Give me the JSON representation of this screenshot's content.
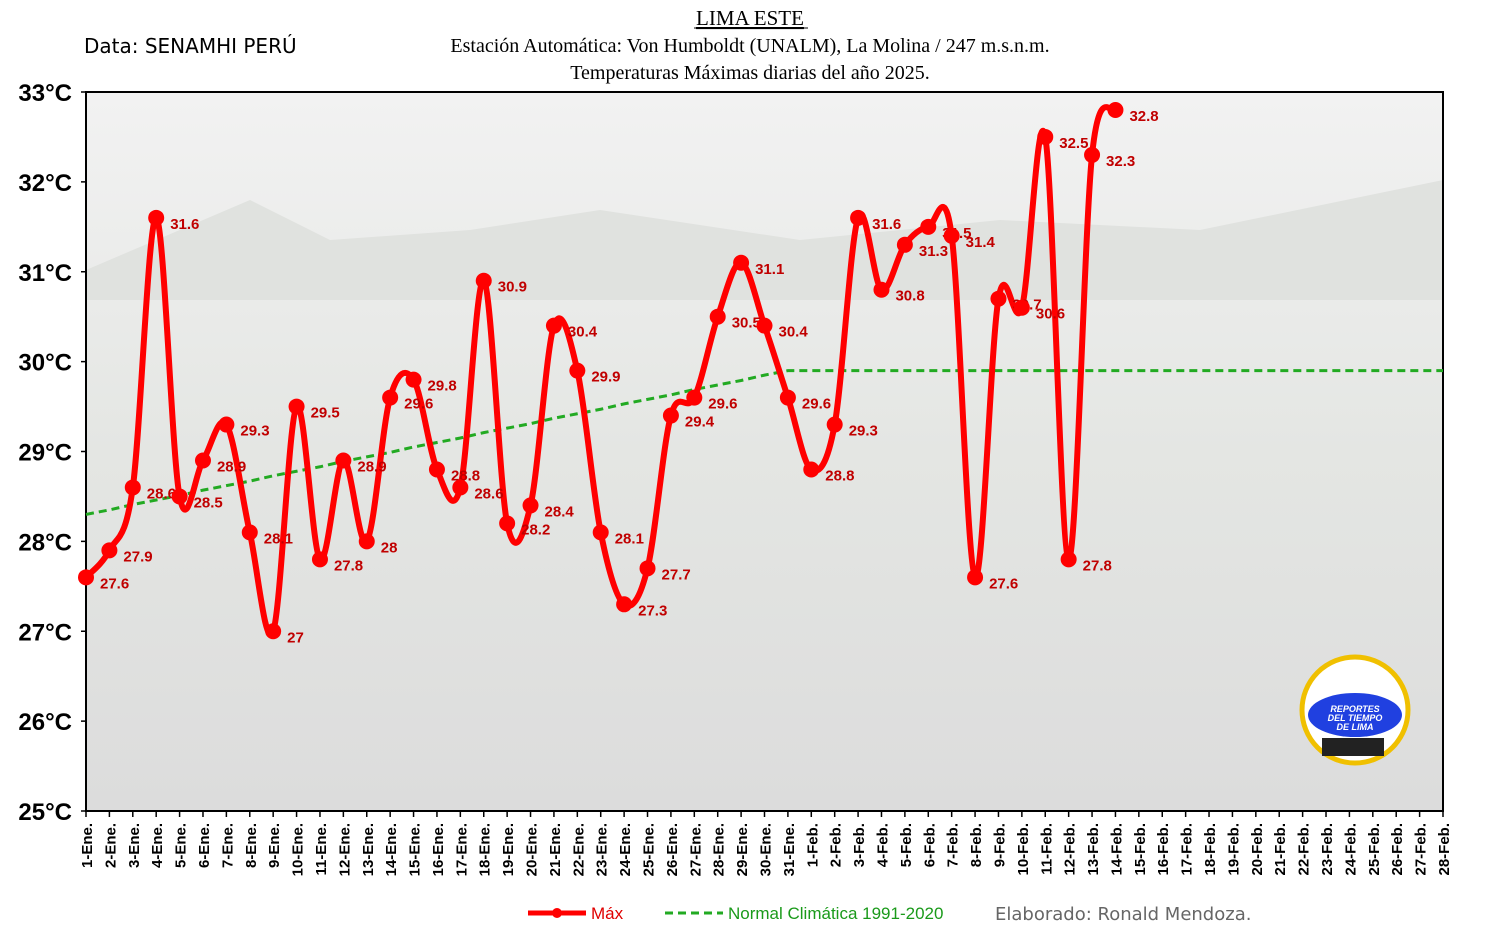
{
  "chart_data": {
    "type": "line",
    "title": "LIMA ESTE",
    "subtitle": [
      "Estación Automática: Von Humboldt (UNALM), La Molina / 247 m.s.n.m.",
      "Temperaturas Máximas diarias del año 2025."
    ],
    "source": "Data: SENAMHI PERÚ",
    "credit": "Elaborado: Ronald Mendoza.",
    "logo": [
      "REPORTES",
      "DEL TIEMPO",
      "DE LIMA"
    ],
    "categories": [
      "1-Ene.",
      "2-Ene.",
      "3-Ene.",
      "4-Ene.",
      "5-Ene.",
      "6-Ene.",
      "7-Ene.",
      "8-Ene.",
      "9-Ene.",
      "10-Ene.",
      "11-Ene.",
      "12-Ene.",
      "13-Ene.",
      "14-Ene.",
      "15-Ene.",
      "16-Ene.",
      "17-Ene.",
      "18-Ene.",
      "19-Ene.",
      "20-Ene.",
      "21-Ene.",
      "22-Ene.",
      "23-Ene.",
      "24-Ene.",
      "25-Ene.",
      "26-Ene.",
      "27-Ene.",
      "28-Ene.",
      "29-Ene.",
      "30-Ene.",
      "31-Ene.",
      "1-Feb.",
      "2-Feb.",
      "3-Feb.",
      "4-Feb.",
      "5-Feb.",
      "6-Feb.",
      "7-Feb.",
      "8-Feb.",
      "9-Feb.",
      "10-Feb.",
      "11-Feb.",
      "12-Feb.",
      "13-Feb.",
      "14-Feb.",
      "15-Feb.",
      "16-Feb.",
      "17-Feb.",
      "18-Feb.",
      "19-Feb.",
      "20-Feb.",
      "21-Feb.",
      "22-Feb.",
      "23-Feb.",
      "24-Feb.",
      "25-Feb.",
      "26-Feb.",
      "27-Feb.",
      "28-Feb."
    ],
    "series": [
      {
        "name": "Máx",
        "color": "#ff0000",
        "labels": true,
        "values": [
          27.6,
          27.9,
          28.6,
          31.6,
          28.5,
          28.9,
          29.3,
          28.1,
          27,
          29.5,
          27.8,
          28.9,
          28,
          29.6,
          29.8,
          28.8,
          28.6,
          30.9,
          28.2,
          28.4,
          30.4,
          29.9,
          28.1,
          27.3,
          27.7,
          29.4,
          29.6,
          30.5,
          31.1,
          30.4,
          29.6,
          28.8,
          29.3,
          31.6,
          30.8,
          31.3,
          31.5,
          31.4,
          27.6,
          30.7,
          30.6,
          32.5,
          27.8,
          32.3,
          32.8,
          null,
          null,
          null,
          null,
          null,
          null,
          null,
          null,
          null,
          null,
          null,
          null,
          null,
          null
        ]
      },
      {
        "name": "Normal Climática 1991-2020",
        "color": "#22aa22",
        "dashed": true,
        "values": [
          28.3,
          28.35,
          28.41,
          28.46,
          28.51,
          28.57,
          28.62,
          28.67,
          28.73,
          28.78,
          28.83,
          28.89,
          28.94,
          28.99,
          29.05,
          29.1,
          29.15,
          29.21,
          29.26,
          29.31,
          29.37,
          29.42,
          29.47,
          29.53,
          29.58,
          29.63,
          29.69,
          29.74,
          29.79,
          29.85,
          29.9,
          29.9,
          29.9,
          29.9,
          29.9,
          29.9,
          29.9,
          29.9,
          29.9,
          29.9,
          29.9,
          29.9,
          29.9,
          29.9,
          29.9,
          29.9,
          29.9,
          29.9,
          29.9,
          29.9,
          29.9,
          29.9,
          29.9,
          29.9,
          29.9,
          29.9,
          29.9,
          29.9,
          29.9
        ]
      }
    ],
    "ylim": [
      25,
      33
    ],
    "yticks": [
      {
        "value": 25,
        "label": "25°C"
      },
      {
        "value": 26,
        "label": "26°C"
      },
      {
        "value": 27,
        "label": "27°C"
      },
      {
        "value": 28,
        "label": "28°C"
      },
      {
        "value": 29,
        "label": "29°C"
      },
      {
        "value": 30,
        "label": "30°C"
      },
      {
        "value": 31,
        "label": "31°C"
      },
      {
        "value": 32,
        "label": "32°C"
      },
      {
        "value": 33,
        "label": "33°C"
      }
    ]
  }
}
